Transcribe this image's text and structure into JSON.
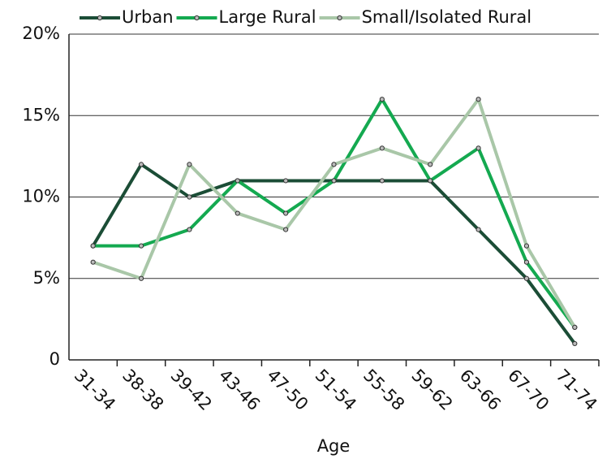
{
  "chart_data": {
    "type": "line",
    "xlabel": "Age",
    "categories": [
      "31-34",
      "38-38",
      "39-42",
      "43-46",
      "47-50",
      "51-54",
      "55-58",
      "59-62",
      "63-66",
      "67-70",
      "71-74"
    ],
    "series": [
      {
        "name": "Urban",
        "color": "#1b4d36",
        "values": [
          7,
          12,
          10,
          11,
          11,
          11,
          11,
          11,
          8,
          5,
          1
        ]
      },
      {
        "name": "Large Rural",
        "color": "#14a950",
        "values": [
          7,
          7,
          8,
          11,
          9,
          11,
          16,
          11,
          13,
          6,
          2
        ]
      },
      {
        "name": "Small/Isolated Rural",
        "color": "#a9c7a8",
        "values": [
          6,
          5,
          12,
          9,
          8,
          12,
          13,
          12,
          16,
          7,
          2
        ]
      }
    ],
    "ylim": [
      0,
      20
    ],
    "yticks": [
      0,
      {
        "value": 5,
        "label": "5%"
      },
      {
        "value": 10,
        "label": "10%"
      },
      {
        "value": 15,
        "label": "15%"
      },
      {
        "value": 20,
        "label": "20%"
      }
    ],
    "grid": true,
    "legend": "top"
  }
}
